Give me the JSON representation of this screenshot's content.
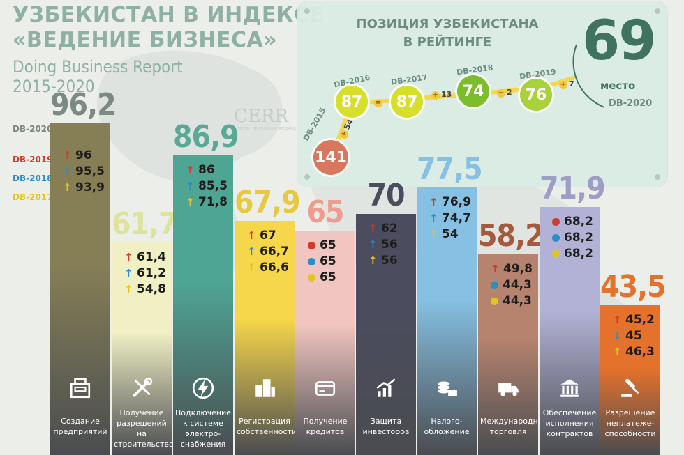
{
  "header": {
    "title_line1": "УЗБЕКИСТАН В ИНДЕКСЕ",
    "title_line2": "«ВЕДЕНИЕ БИЗНЕСА»",
    "subtitle": "Doing Business Report",
    "years": "2015-2020"
  },
  "legend": [
    {
      "label": "DB-2020",
      "color": "#7d8a84"
    },
    {
      "label": "DB-2019",
      "color": "#d23a2a"
    },
    {
      "label": "DB-2018",
      "color": "#2b8ec9"
    },
    {
      "label": "DB-2017",
      "color": "#e4c51e"
    }
  ],
  "watermark": {
    "text": "CERR",
    "sub": "CENTER FOR ECONOMIC RESEARCH AND REFORMS"
  },
  "ranking": {
    "title_line1": "ПОЗИЦИЯ УЗБЕКИСТАНА",
    "title_line2": "В РЕЙТИНГЕ",
    "current_rank": "69",
    "current_word": "место",
    "current_edition": "DB-2020",
    "points": [
      {
        "edition": "DB-2015",
        "rank": "141",
        "color": "#d8765e"
      },
      {
        "edition": "DB-2016",
        "rank": "87",
        "color": "#d6e02a"
      },
      {
        "edition": "DB-2017",
        "rank": "87",
        "color": "#d6e02a"
      },
      {
        "edition": "DB-2018",
        "rank": "74",
        "color": "#7cbd2e"
      },
      {
        "edition": "DB-2019",
        "rank": "76",
        "color": "#a8d13a"
      }
    ],
    "deltas": [
      "54",
      "",
      "13",
      "2",
      "7"
    ]
  },
  "chart_data": {
    "type": "bar",
    "series_names": [
      "DB-2020",
      "DB-2019",
      "DB-2018",
      "DB-2017"
    ],
    "categories": [
      {
        "label": "Создание предприятий",
        "icon": "building-icon",
        "db2020": "96,2",
        "history": [
          {
            "v": "96",
            "m": "up"
          },
          {
            "v": "95,5",
            "m": "up"
          },
          {
            "v": "93,9",
            "m": "up"
          }
        ],
        "value": 96.2,
        "color": "#867f56",
        "valcolor": "#7d8a84"
      },
      {
        "label": "Получение разрешений на строительство",
        "icon": "tools-icon",
        "db2020": "61,7",
        "history": [
          {
            "v": "61,4",
            "m": "up"
          },
          {
            "v": "61,2",
            "m": "up"
          },
          {
            "v": "54,8",
            "m": "up"
          }
        ],
        "value": 61.7,
        "color": "#f1f0c5",
        "valcolor": "#dde39a"
      },
      {
        "label": "Подключение к системе электро-снабжения",
        "icon": "lightning-icon",
        "db2020": "86,9",
        "history": [
          {
            "v": "86",
            "m": "up"
          },
          {
            "v": "85,5",
            "m": "up"
          },
          {
            "v": "71,8",
            "m": "up"
          }
        ],
        "value": 86.9,
        "color": "#4ea594",
        "valcolor": "#5aa896"
      },
      {
        "label": "Регистрация собственности",
        "icon": "city-icon",
        "db2020": "67,9",
        "history": [
          {
            "v": "67",
            "m": "up"
          },
          {
            "v": "66,7",
            "m": "up"
          },
          {
            "v": "66,6",
            "m": "up"
          }
        ],
        "value": 67.9,
        "color": "#f6d64a",
        "valcolor": "#e7c842"
      },
      {
        "label": "Получение кредитов",
        "icon": "credit-card-icon",
        "db2020": "65",
        "history": [
          {
            "v": "65",
            "m": "eq"
          },
          {
            "v": "65",
            "m": "eq"
          },
          {
            "v": "65",
            "m": "eq"
          }
        ],
        "value": 65,
        "color": "#f1c5c0",
        "valcolor": "#ef9b90"
      },
      {
        "label": "Защита инвесторов",
        "icon": "growth-chart-icon",
        "db2020": "70",
        "history": [
          {
            "v": "62",
            "m": "up"
          },
          {
            "v": "56",
            "m": "up"
          },
          {
            "v": "56",
            "m": "up"
          }
        ],
        "value": 70,
        "color": "#4b4c5d",
        "valcolor": "#4b4c5d"
      },
      {
        "label": "Налого-обложение",
        "icon": "coins-icon",
        "db2020": "77,5",
        "history": [
          {
            "v": "76,9",
            "m": "up"
          },
          {
            "v": "74,7",
            "m": "up"
          },
          {
            "v": "54",
            "m": "up"
          }
        ],
        "value": 77.5,
        "color": "#86c1e3",
        "valcolor": "#86c1e3"
      },
      {
        "label": "Международная торговля",
        "icon": "truck-icon",
        "db2020": "58,2",
        "history": [
          {
            "v": "49,8",
            "m": "up"
          },
          {
            "v": "44,3",
            "m": "eq"
          },
          {
            "v": "44,3",
            "m": "eq"
          }
        ],
        "value": 58.2,
        "color": "#b5836e",
        "valcolor": "#a55a3f"
      },
      {
        "label": "Обеспечение исполнения контрактов",
        "icon": "courthouse-icon",
        "db2020": "71,9",
        "history": [
          {
            "v": "68,2",
            "m": "eq"
          },
          {
            "v": "68,2",
            "m": "eq"
          },
          {
            "v": "68,2",
            "m": "eq"
          }
        ],
        "value": 71.9,
        "color": "#b2b2d6",
        "valcolor": "#9d9dc5"
      },
      {
        "label": "Разрешение неплатеже-способности",
        "icon": "gavel-icon",
        "db2020": "43,5",
        "history": [
          {
            "v": "45,2",
            "m": "up"
          },
          {
            "v": "45",
            "m": "down"
          },
          {
            "v": "46,3",
            "m": "up"
          }
        ],
        "value": 43.5,
        "color": "#e5722c",
        "valcolor": "#e5722c"
      }
    ],
    "ylim": [
      0,
      100
    ]
  }
}
